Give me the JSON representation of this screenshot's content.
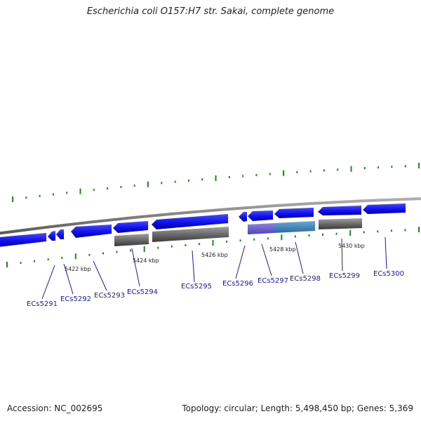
{
  "title": "Escherichia coli O157:H7 str. Sakai, complete genome",
  "footer": {
    "accession": "Accession: NC_002695",
    "stats": "Topology: circular; Length: 5,498,450 bp; Genes: 5,369"
  },
  "colors": {
    "cds": "#1010f0",
    "cds_dark": "#000090",
    "backbone": "#808080",
    "tick": "#1e8a1e",
    "label": "#1a1ab0",
    "match_grey": "#5a5a5a",
    "match_purple": "#6a5acd",
    "match_steelblue": "#4682b4"
  },
  "scale_labels": [
    "5422 kbp",
    "5424 kbp",
    "5426 kbp",
    "5428 kbp",
    "5430 kbp"
  ],
  "genes": [
    "ECs5291",
    "ECs5292",
    "ECs5293",
    "ECs5294",
    "ECs5295",
    "ECs5296",
    "ECs5297",
    "ECs5298",
    "ECs5299",
    "ECs5300"
  ]
}
